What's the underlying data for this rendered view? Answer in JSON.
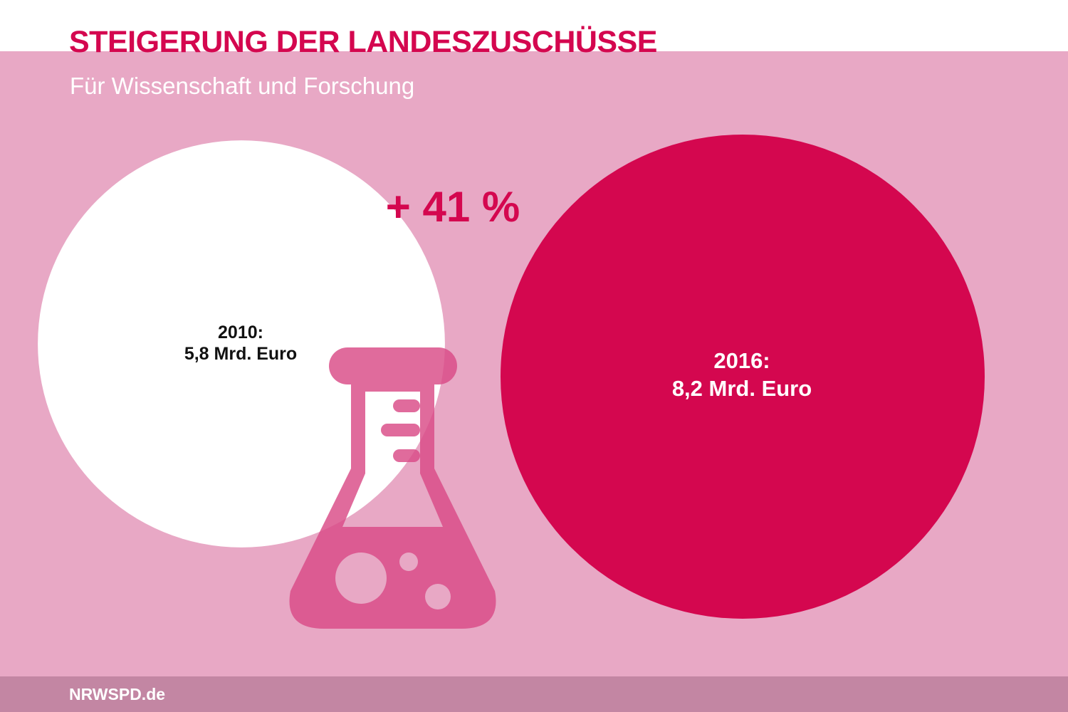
{
  "title": "STEIGERUNG DER LANDESZUSCHÜSSE",
  "subtitle": "Für Wissenschaft und Forschung",
  "footer": "NRWSPD.de",
  "colors": {
    "background": "#e8a8c5",
    "accent": "#d4074f",
    "circle_2010": "#ffffff",
    "flask": "#d94a86",
    "footer_band": "#c386a3"
  },
  "icons": [
    "flask-icon"
  ],
  "chart_data": {
    "type": "bubble",
    "title": "STEIGERUNG DER LANDESZUSCHÜSSE",
    "subtitle": "Für Wissenschaft und Forschung",
    "unit": "Mrd. Euro",
    "categories": [
      "2010",
      "2016"
    ],
    "values": [
      5.8,
      8.2
    ],
    "labels": [
      {
        "year": "2010:",
        "amount": "5,8 Mrd. Euro"
      },
      {
        "year": "2016:",
        "amount": "8,2 Mrd. Euro"
      }
    ],
    "change_label": "+ 41 %"
  }
}
